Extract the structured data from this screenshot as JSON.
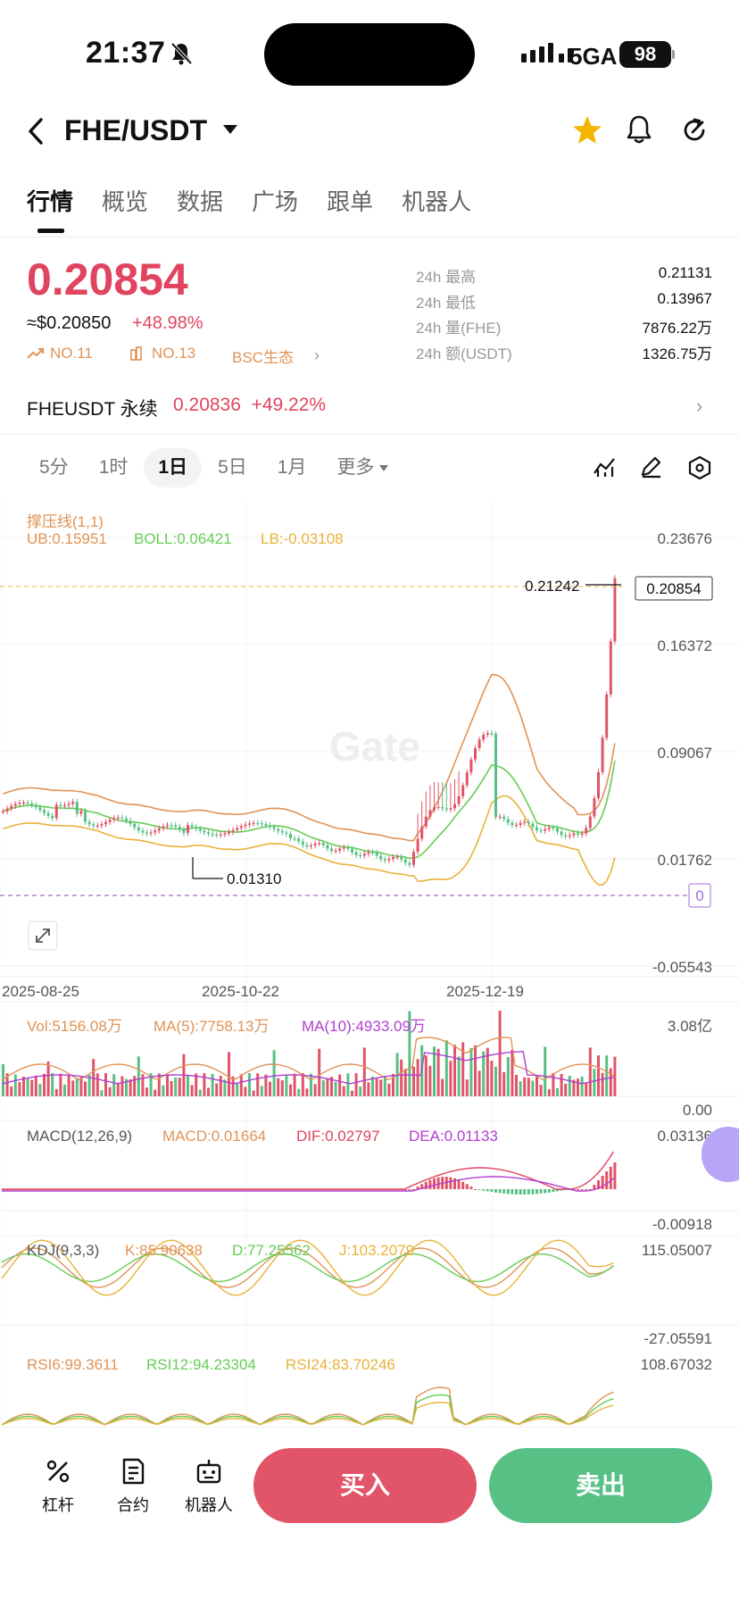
{
  "status_bar": {
    "time": "21:37",
    "network": "5GA",
    "battery": "98"
  },
  "header": {
    "pair": "FHE/USDT"
  },
  "tabs": [
    "行情",
    "概览",
    "数据",
    "广场",
    "跟单",
    "机器人"
  ],
  "ticker": {
    "price": "0.20854",
    "usd_price": "≈$0.20850",
    "change": "+48.98%",
    "rank1": "NO.11",
    "rank2": "NO.13",
    "ecosystem": "BSC生态",
    "stats": [
      {
        "label": "24h  最高",
        "value": "0.21131"
      },
      {
        "label": "24h  最低",
        "value": "0.13967"
      },
      {
        "label": "24h  量(FHE)",
        "value": "7876.22万"
      },
      {
        "label": "24h  额(USDT)",
        "value": "1326.75万"
      }
    ]
  },
  "perpetual": {
    "label": "FHEUSDT 永续",
    "price": "0.20836",
    "change": "+49.22%"
  },
  "intervals": [
    "5分",
    "1时",
    "1日",
    "5日",
    "1月",
    "更多"
  ],
  "active_interval": "1日",
  "chart_labels": {
    "indicator_title": "撑压线(1,1)",
    "ub": "UB:0.15951",
    "boll": "BOLL:0.06421",
    "lb": "LB:-0.03108",
    "y_ticks": [
      "0.23676",
      "0.16372",
      "0.09067",
      "0.01762",
      "-0.05543"
    ],
    "current_price_tag": "0.20854",
    "high_label": "0.21242",
    "low_label": "0.01310",
    "zero_tag": "0",
    "x_ticks": [
      "2025-08-25",
      "2025-10-22",
      "2025-12-19"
    ],
    "watermark": "Gate",
    "vol": "Vol:5156.08万",
    "vol_ma5": "MA(5):7758.13万",
    "vol_ma10": "MA(10):4933.09万",
    "vol_top": "3.08亿",
    "vol_bottom": "0.00",
    "macd_title": "MACD(12,26,9)",
    "macd": "MACD:0.01664",
    "dif": "DIF:0.02797",
    "dea": "DEA:0.01133",
    "macd_top": "0.03136",
    "macd_bottom": "-0.00918",
    "kdj_title": "KDJ(9,3,3)",
    "k": "K:85.90638",
    "d": "D:77.25562",
    "j": "J:103.2079",
    "kdj_top": "115.05007",
    "kdj_bottom": "-27.05591",
    "rsi6": "RSI6:99.3611",
    "rsi12": "RSI12:94.23304",
    "rsi24": "RSI24:83.70246",
    "rsi_top": "108.67032"
  },
  "chart_data": {
    "type": "candlestick",
    "x_ticks": [
      "2025-08-25",
      "2025-10-22",
      "2025-12-19"
    ],
    "y_range": [
      -0.05543,
      0.23676
    ],
    "last_price": 0.20854,
    "high": 0.21242,
    "low": 0.0131,
    "indicators": {
      "UB": 0.15951,
      "BOLL": 0.06421,
      "LB": -0.03108
    }
  },
  "bottom_nav": [
    "杠杆",
    "合约",
    "机器人"
  ],
  "actions": {
    "buy": "买入",
    "sell": "卖出"
  },
  "colors": {
    "up": "#e25467",
    "down": "#57c085",
    "accent": "#e09356"
  }
}
